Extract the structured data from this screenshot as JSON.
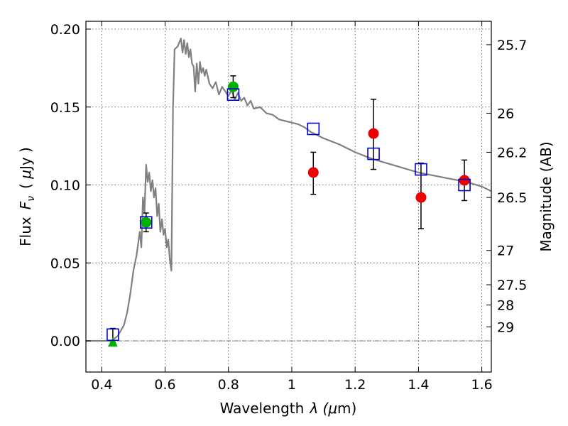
{
  "chart_data": {
    "type": "scatter",
    "title": "",
    "xlabel_parts": [
      "Wavelength",
      "λ (",
      "μ",
      "m)"
    ],
    "ylabel_parts": [
      "Flux",
      "F",
      "ν",
      "( ",
      "μ",
      "Jy )"
    ],
    "right_ylabel": "Magnitude (AB)",
    "xlim": [
      0.35,
      1.63
    ],
    "ylim": [
      -0.02,
      0.205
    ],
    "x_ticks": [
      0.4,
      0.6,
      0.8,
      1.0,
      1.2,
      1.4,
      1.6
    ],
    "x_tick_labels": [
      "0.4",
      "0.6",
      "0.8",
      "1",
      "1.2",
      "1.4",
      "1.6"
    ],
    "y_ticks": [
      0.0,
      0.05,
      0.1,
      0.15,
      0.2
    ],
    "y_tick_labels": [
      "0.00",
      "0.05",
      "0.10",
      "0.15",
      "0.20"
    ],
    "right_ticks": [
      {
        "flux": 0.19,
        "label": "25.7"
      },
      {
        "flux": 0.146,
        "label": "26"
      },
      {
        "flux": 0.121,
        "label": "26.2"
      },
      {
        "flux": 0.092,
        "label": "26.5"
      },
      {
        "flux": 0.058,
        "label": "27"
      },
      {
        "flux": 0.036,
        "label": "27.5"
      },
      {
        "flux": 0.023,
        "label": "28"
      },
      {
        "flux": 0.009,
        "label": "29"
      }
    ],
    "grid": true,
    "model_spectrum": {
      "color": "#808080",
      "x": [
        0.35,
        0.43,
        0.45,
        0.47,
        0.48,
        0.49,
        0.5,
        0.51,
        0.52,
        0.525,
        0.53,
        0.535,
        0.54,
        0.545,
        0.55,
        0.555,
        0.56,
        0.565,
        0.57,
        0.575,
        0.58,
        0.585,
        0.59,
        0.595,
        0.6,
        0.605,
        0.61,
        0.615,
        0.62,
        0.625,
        0.63,
        0.64,
        0.65,
        0.655,
        0.66,
        0.665,
        0.67,
        0.675,
        0.68,
        0.685,
        0.69,
        0.695,
        0.7,
        0.705,
        0.71,
        0.715,
        0.72,
        0.725,
        0.73,
        0.74,
        0.75,
        0.76,
        0.77,
        0.78,
        0.79,
        0.8,
        0.81,
        0.82,
        0.83,
        0.84,
        0.85,
        0.86,
        0.87,
        0.88,
        0.9,
        0.92,
        0.94,
        0.96,
        0.98,
        1.0,
        1.02,
        1.04,
        1.06,
        1.08,
        1.1,
        1.15,
        1.2,
        1.25,
        1.3,
        1.35,
        1.4,
        1.45,
        1.5,
        1.55,
        1.6,
        1.63
      ],
      "y": [
        0.0,
        0.0,
        0.003,
        0.01,
        0.018,
        0.03,
        0.045,
        0.055,
        0.07,
        0.06,
        0.092,
        0.082,
        0.113,
        0.102,
        0.108,
        0.096,
        0.103,
        0.092,
        0.098,
        0.08,
        0.088,
        0.07,
        0.078,
        0.068,
        0.072,
        0.06,
        0.065,
        0.052,
        0.045,
        0.15,
        0.187,
        0.189,
        0.194,
        0.185,
        0.193,
        0.184,
        0.191,
        0.182,
        0.187,
        0.178,
        0.176,
        0.16,
        0.178,
        0.165,
        0.179,
        0.172,
        0.175,
        0.17,
        0.174,
        0.165,
        0.162,
        0.166,
        0.158,
        0.163,
        0.16,
        0.157,
        0.161,
        0.155,
        0.159,
        0.154,
        0.156,
        0.151,
        0.154,
        0.149,
        0.15,
        0.146,
        0.145,
        0.142,
        0.141,
        0.14,
        0.139,
        0.137,
        0.134,
        0.132,
        0.13,
        0.126,
        0.121,
        0.117,
        0.114,
        0.111,
        0.108,
        0.106,
        0.104,
        0.102,
        0.099,
        0.096
      ]
    },
    "model_photometry": {
      "marker": "open-square",
      "color": "#0000cc",
      "x": [
        0.435,
        0.54,
        0.815,
        1.068,
        1.258,
        1.408,
        1.545
      ],
      "y": [
        0.004,
        0.076,
        0.158,
        0.136,
        0.12,
        0.11,
        0.1
      ]
    },
    "green_points": {
      "marker": "circle",
      "color": "#00b000",
      "x": [
        0.54,
        0.815
      ],
      "y": [
        0.076,
        0.163
      ],
      "yerr": [
        0.006,
        0.007
      ]
    },
    "green_upper_limit": {
      "marker": "triangle",
      "color": "#00b000",
      "x": 0.435,
      "y": -0.001,
      "err_low": -0.001,
      "err_high": 0.008
    },
    "red_points": {
      "marker": "circle",
      "color": "#ee0000",
      "x": [
        1.068,
        1.258,
        1.408,
        1.545
      ],
      "y": [
        0.108,
        0.133,
        0.092,
        0.103
      ],
      "yerr_low": [
        0.014,
        0.023,
        0.02,
        0.013
      ],
      "yerr_high": [
        0.013,
        0.022,
        0.022,
        0.013
      ]
    }
  }
}
